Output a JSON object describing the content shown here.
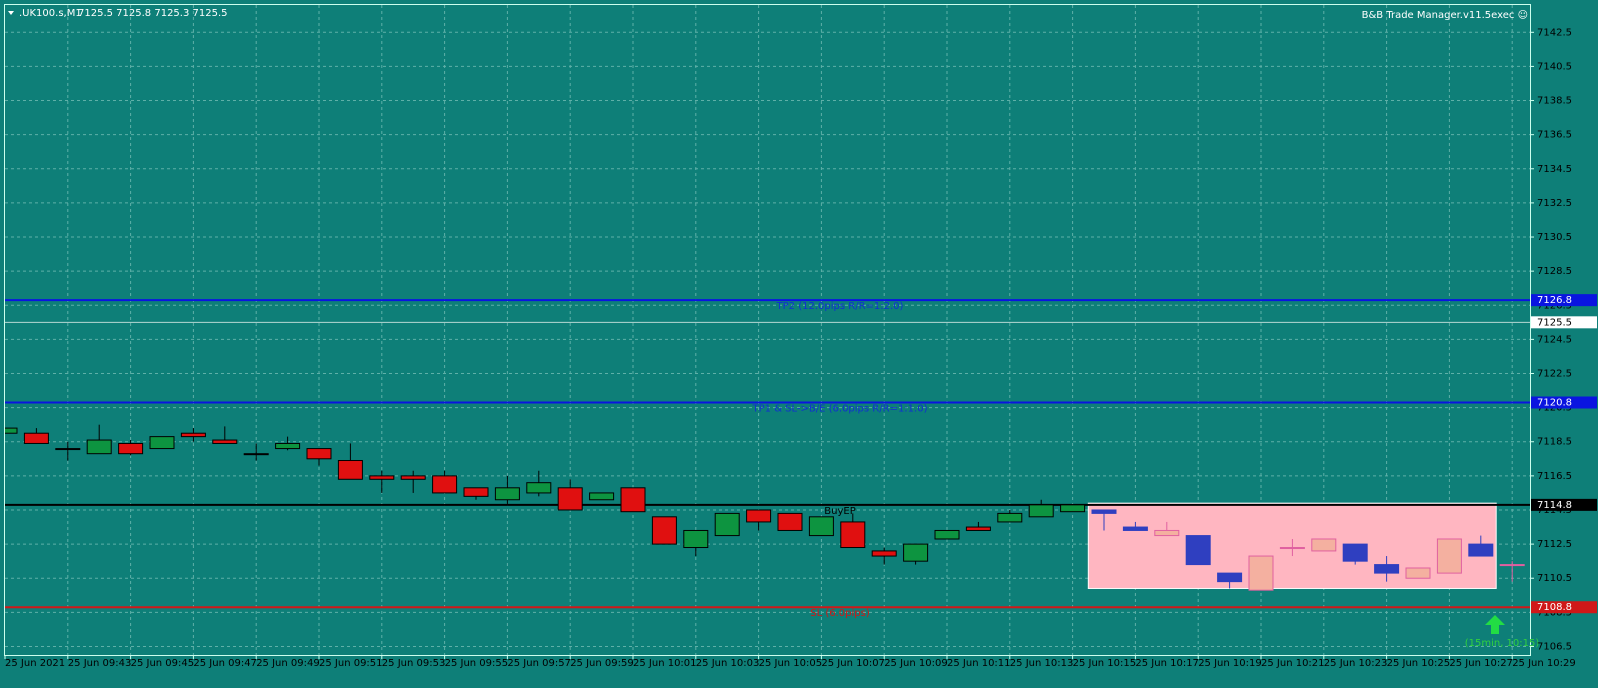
{
  "chart_data": {
    "type": "candlestick",
    "symbol": ".UK100.s,M1",
    "quote": "7125.5 7125.8 7125.3 7125.5",
    "indicator": "B&B Trade Manager.v11.5exec ☺",
    "background": "#0e7f78",
    "grid": true,
    "ylim": [
      7106.0,
      7144.1
    ],
    "yticks": [
      7106.5,
      7108.5,
      7110.5,
      7112.5,
      7114.5,
      7116.5,
      7118.5,
      7120.5,
      7122.5,
      7124.5,
      7126.5,
      7128.5,
      7130.5,
      7132.5,
      7134.5,
      7136.5,
      7138.5,
      7140.5,
      7142.5
    ],
    "categories": [
      "25 Jun 2021",
      null,
      "25 Jun 09:43",
      null,
      "25 Jun 09:45",
      null,
      "25 Jun 09:47",
      null,
      "25 Jun 09:49",
      null,
      "25 Jun 09:51",
      null,
      "25 Jun 09:53",
      null,
      "25 Jun 09:55",
      null,
      "25 Jun 09:57",
      null,
      "25 Jun 09:59",
      null,
      "25 Jun 10:01",
      null,
      "25 Jun 10:03",
      null,
      "25 Jun 10:05",
      null,
      "25 Jun 10:07",
      null,
      "25 Jun 10:09",
      null,
      "25 Jun 10:11",
      null,
      "25 Jun 10:13",
      null,
      "25 Jun 10:15",
      null,
      "25 Jun 10:17",
      null,
      "25 Jun 10:19",
      null,
      "25 Jun 10:21",
      null,
      "25 Jun 10:23",
      null,
      "25 Jun 10:25",
      null,
      "25 Jun 10:27",
      null,
      "25 Jun 10:29"
    ],
    "series": [
      {
        "up_color": "#0d9440",
        "down_color": "#e01010",
        "open": [
          7119,
          7119,
          7118.1,
          7117.8,
          7118.4,
          7118.1,
          7119,
          7118.6,
          7117.8,
          7118.1,
          7118.1,
          7117.4,
          7116.5,
          7116.5,
          7116.5,
          7115.8,
          7115.1,
          7115.5,
          7115.8,
          7115.1,
          7115.8,
          7114.1,
          7112.3,
          7113,
          7114.5,
          7114.3,
          7113,
          7113.8,
          7112.1,
          7111.5,
          7112.8,
          7113.5,
          7113.8,
          7114.1,
          7114.4,
          null,
          null,
          null,
          null,
          null,
          null,
          null,
          null,
          null,
          null,
          null,
          null,
          null,
          null
        ],
        "high": [
          7119.3,
          7119.3,
          7118.5,
          7119.5,
          7118.6,
          7118.8,
          7119.3,
          7119.4,
          7118.4,
          7118.8,
          7118.1,
          7118.4,
          7116.8,
          7116.8,
          7116.8,
          7115.8,
          7116.5,
          7116.8,
          7116.3,
          7115.5,
          7115.8,
          7114.1,
          7113.3,
          7114.3,
          7114.5,
          7114.3,
          7114.1,
          7114.3,
          7112.3,
          7112.5,
          7113.3,
          7113.8,
          7114.5,
          7115.1,
          7114.8,
          null,
          null,
          null,
          null,
          null,
          null,
          null,
          null,
          null,
          null,
          null,
          null,
          null,
          null
        ],
        "low": [
          7119,
          7118.4,
          7117.4,
          7117.8,
          7117.7,
          7118.1,
          7118.5,
          7118.4,
          7117.4,
          7118,
          7117.1,
          7116.3,
          7115.5,
          7115.5,
          7115.5,
          7115.1,
          7114.8,
          7115.3,
          7114.5,
          7115.1,
          7114.4,
          7112.5,
          7111.8,
          7113,
          7113.3,
          7113.3,
          7113,
          7112.3,
          7111.3,
          7111.3,
          7112.8,
          7113.3,
          7113.8,
          7114.1,
          7114.4,
          null,
          null,
          null,
          null,
          null,
          null,
          null,
          null,
          null,
          null,
          null,
          null,
          null,
          null
        ],
        "close": [
          7119.3,
          7118.4,
          7118.1,
          7118.6,
          7117.8,
          7118.8,
          7118.8,
          7118.4,
          7117.8,
          7118.4,
          7117.5,
          7116.3,
          7116.3,
          7116.3,
          7115.5,
          7115.3,
          7115.8,
          7116.1,
          7114.5,
          7115.5,
          7114.4,
          7112.5,
          7113.3,
          7114.3,
          7113.8,
          7113.3,
          7114.1,
          7112.3,
          7111.8,
          7112.5,
          7113.3,
          7113.3,
          7114.3,
          7114.8,
          7114.8,
          null,
          null,
          null,
          null,
          null,
          null,
          null,
          null,
          null,
          null,
          null,
          null,
          null,
          null
        ]
      },
      {
        "up_color": "#f4b0a0",
        "down_color": "#2f3fc0",
        "open": [
          null,
          null,
          null,
          null,
          null,
          null,
          null,
          null,
          null,
          null,
          null,
          null,
          null,
          null,
          null,
          null,
          null,
          null,
          null,
          null,
          null,
          null,
          null,
          null,
          null,
          null,
          null,
          null,
          null,
          null,
          null,
          null,
          null,
          null,
          null,
          7114.5,
          7113.5,
          7113,
          7113,
          7110.8,
          7109.8,
          7112.3,
          7112.1,
          7112.5,
          7111.3,
          7110.5,
          7110.8,
          7112.5,
          7111.3
        ],
        "high": [
          null,
          null,
          null,
          null,
          null,
          null,
          null,
          null,
          null,
          null,
          null,
          null,
          null,
          null,
          null,
          null,
          null,
          null,
          null,
          null,
          null,
          null,
          null,
          null,
          null,
          null,
          null,
          null,
          null,
          null,
          null,
          null,
          null,
          null,
          null,
          7114.5,
          7113.8,
          7113.8,
          7113,
          7110.8,
          7111.8,
          7112.8,
          7112.8,
          7112.5,
          7111.8,
          7111.1,
          7112.8,
          7113,
          7111.5
        ],
        "low": [
          null,
          null,
          null,
          null,
          null,
          null,
          null,
          null,
          null,
          null,
          null,
          null,
          null,
          null,
          null,
          null,
          null,
          null,
          null,
          null,
          null,
          null,
          null,
          null,
          null,
          null,
          null,
          null,
          null,
          null,
          null,
          null,
          null,
          null,
          null,
          7113.3,
          7113.3,
          7113,
          7111.3,
          7109.9,
          7109.8,
          7111.8,
          7112.1,
          7111.3,
          7110.3,
          7110.5,
          7110.8,
          7111.8,
          7110.3
        ],
        "close": [
          null,
          null,
          null,
          null,
          null,
          null,
          null,
          null,
          null,
          null,
          null,
          null,
          null,
          null,
          null,
          null,
          null,
          null,
          null,
          null,
          null,
          null,
          null,
          null,
          null,
          null,
          null,
          null,
          null,
          null,
          null,
          null,
          null,
          null,
          null,
          7114.3,
          7113.3,
          7113.3,
          7111.3,
          7110.3,
          7111.8,
          7112.3,
          7112.8,
          7111.5,
          7110.8,
          7111.1,
          7112.8,
          7111.8,
          7111.3
        ]
      }
    ],
    "zone": {
      "top": 7114.9,
      "bottom": 7109.9,
      "color": "#ffb6c1"
    },
    "levels": [
      {
        "name": "TP2 (12.0pips R/R=1:2.0)",
        "value": 7126.8,
        "color": "#0a14e0",
        "label_color": "#1030d0"
      },
      {
        "name": "TP1 & SL->B/E (6.0pips R/R=1:1.0)",
        "value": 7120.8,
        "color": "#0a14e0",
        "label_color": "#1030d0"
      },
      {
        "name": "BuyEP",
        "value": 7114.8,
        "color": "#000000",
        "label_color": "#000000"
      },
      {
        "name": "SL (6.0pips)",
        "value": 7108.8,
        "color": "#d01818",
        "label_color": "#d01818"
      }
    ],
    "bid": 7125.5,
    "signal": "(15min, 10:15)"
  }
}
